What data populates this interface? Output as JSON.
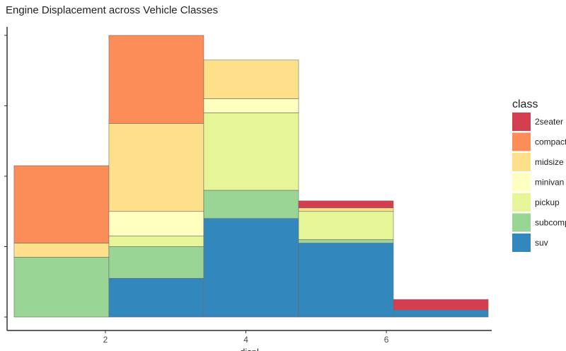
{
  "chart_data": {
    "type": "bar",
    "stacked": true,
    "histogram": true,
    "title": "Engine Displacement across Vehicle Classes",
    "xlabel": "displ",
    "ylabel": "",
    "xlim": [
      0.6,
      7.5
    ],
    "ylim": [
      0,
      80
    ],
    "x_ticks": [
      2,
      4,
      6
    ],
    "y_ticks": [
      0,
      20,
      40,
      60,
      80
    ],
    "y_tick_labels_visible": false,
    "grid": false,
    "legend": {
      "title": "class",
      "position": "right"
    },
    "bins": [
      [
        0.7,
        2.05
      ],
      [
        2.05,
        3.4
      ],
      [
        3.4,
        4.75
      ],
      [
        4.75,
        6.1
      ],
      [
        6.1,
        7.45
      ]
    ],
    "series": [
      {
        "name": "2seater",
        "color": "#d53e4f",
        "values": [
          0,
          0,
          0,
          2,
          3
        ]
      },
      {
        "name": "compact",
        "color": "#fc8d59",
        "values": [
          22,
          25,
          0,
          0,
          0
        ]
      },
      {
        "name": "midsize",
        "color": "#fee08b",
        "values": [
          4,
          25,
          11,
          1,
          0
        ]
      },
      {
        "name": "minivan",
        "color": "#ffffbf",
        "values": [
          0,
          7,
          4,
          0,
          0
        ]
      },
      {
        "name": "pickup",
        "color": "#e6f598",
        "values": [
          0,
          3,
          22,
          8,
          0
        ]
      },
      {
        "name": "subcompact",
        "color": "#99d594",
        "values": [
          17,
          9,
          8,
          1,
          0
        ]
      },
      {
        "name": "suv",
        "color": "#3288bd",
        "values": [
          0,
          11,
          28,
          21,
          2
        ]
      }
    ]
  }
}
